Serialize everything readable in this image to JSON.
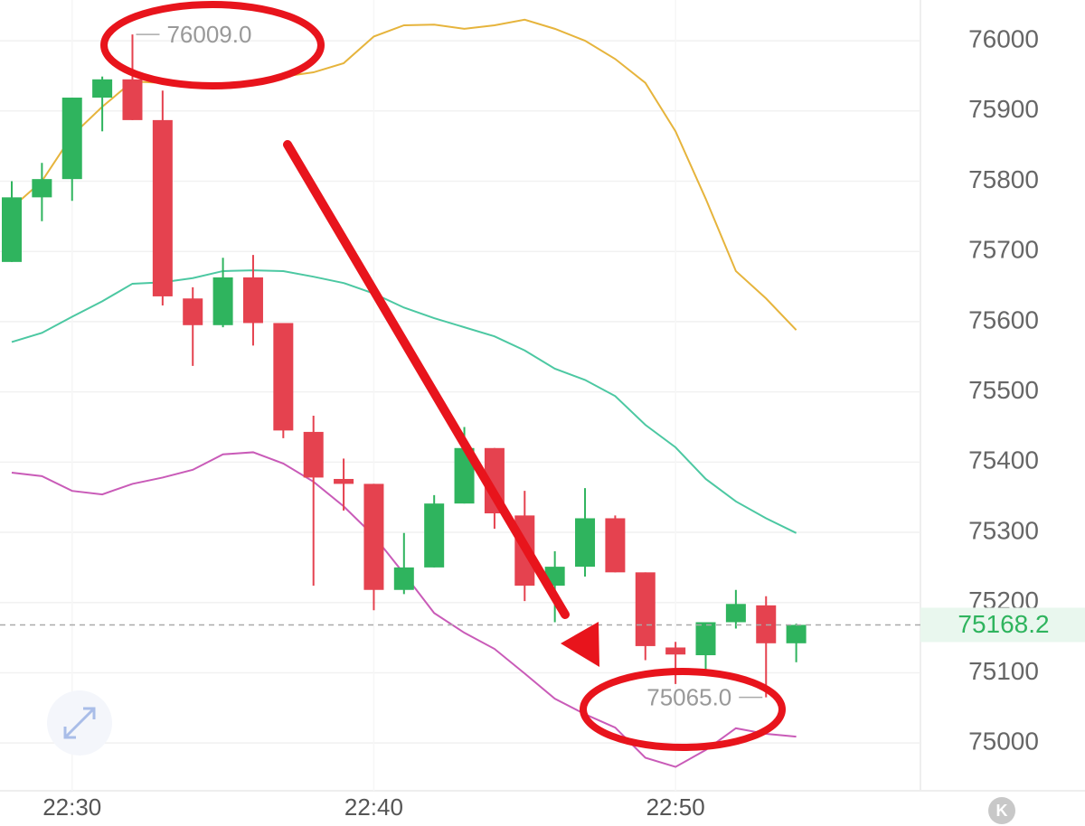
{
  "chart_data": {
    "type": "candlestick",
    "categories": [
      null,
      null,
      "22:30",
      null,
      null,
      null,
      null,
      null,
      null,
      null,
      null,
      null,
      "22:40",
      null,
      null,
      null,
      null,
      null,
      null,
      null,
      null,
      null,
      "22:50",
      null,
      null,
      null,
      null
    ],
    "open": [
      75685,
      75777,
      75803,
      75919,
      75945,
      75887,
      75633,
      75595,
      75663,
      75598,
      75443,
      75376,
      75369,
      75218,
      75250,
      75341,
      75420,
      75324,
      75224,
      75251,
      75320,
      75243,
      75136,
      75125,
      75172,
      75196,
      75142
    ],
    "high": [
      75800,
      75826,
      75919,
      75949,
      76009,
      75929,
      75649,
      75691,
      75695,
      75598,
      75466,
      75405,
      75369,
      75299,
      75353,
      75450,
      75420,
      75359,
      75273,
      75363,
      75324,
      75243,
      75144,
      75172,
      75218,
      75209,
      75170
    ],
    "low": [
      75685,
      75743,
      75772,
      75871,
      75887,
      75623,
      75537,
      75592,
      75566,
      75434,
      75224,
      75331,
      75189,
      75212,
      75250,
      75341,
      75305,
      75202,
      75172,
      75237,
      75243,
      75118,
      75084,
      75099,
      75163,
      75065,
      75115
    ],
    "close": [
      75777,
      75803,
      75919,
      75945,
      75887,
      75636,
      75595,
      75663,
      75598,
      75445,
      75378,
      75369,
      75218,
      75250,
      75341,
      75420,
      75327,
      75224,
      75251,
      75320,
      75243,
      75138,
      75126,
      75172,
      75198,
      75142,
      75168.2
    ],
    "up_color": "#2fb45e",
    "down_color": "#e5424f",
    "lines": [
      {
        "color": "#e6b43c",
        "values": [
          75762,
          75800,
          75865,
          75906,
          75942,
          75940,
          75936,
          75936,
          75938,
          75949,
          75955,
          75968,
          76006,
          76022,
          76023,
          76017,
          76022,
          76030,
          76017,
          76000,
          75974,
          75940,
          75871,
          75775,
          75672,
          75633,
          75588
        ]
      },
      {
        "color": "#4cc8a2",
        "values": [
          75571,
          75584,
          75607,
          75629,
          75654,
          75656,
          75662,
          75672,
          75673,
          75672,
          75664,
          75655,
          75640,
          75620,
          75605,
          75592,
          75579,
          75559,
          75533,
          75517,
          75494,
          75453,
          75421,
          75376,
          75344,
          75320,
          75299
        ]
      },
      {
        "color": "#c95bb8",
        "values": [
          75385,
          75380,
          75359,
          75354,
          75369,
          75378,
          75389,
          75411,
          75414,
          75398,
          75372,
          75337,
          75295,
          75241,
          75185,
          75157,
          75134,
          75099,
          75063,
          75041,
          75022,
          74979,
          74966,
          74990,
          75021,
          75013,
          75009
        ]
      }
    ],
    "annotations": [
      {
        "value": 76009,
        "label": "76009.0"
      },
      {
        "value": 75065,
        "label": "75065.0"
      }
    ],
    "last_price": 75168.2,
    "ylim": [
      74932,
      76058
    ],
    "yticks": [
      75000,
      75100,
      75200,
      75300,
      75400,
      75500,
      75600,
      75700,
      75800,
      75900,
      76000
    ],
    "grid": true
  },
  "ui": {
    "button": "K"
  }
}
